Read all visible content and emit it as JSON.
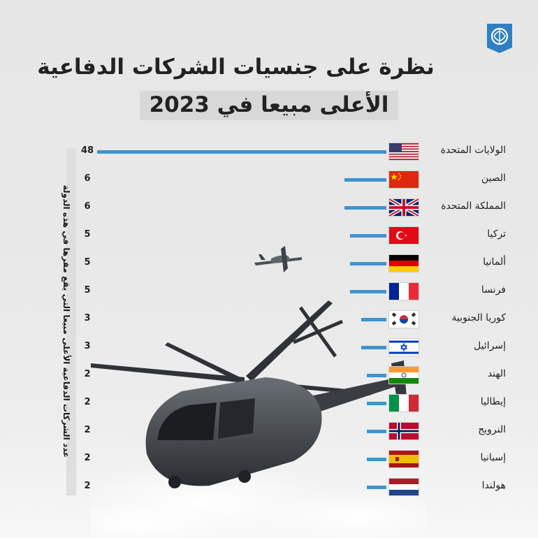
{
  "header": {
    "title_line1": "نظرة على جنسيات الشركات الدفاعية",
    "title_line2": "الأعلى مبيعا في 2023",
    "logo": "aljazeera-logo-icon"
  },
  "colors": {
    "bar": "#3f93cf",
    "title_box": "#d8d8d8"
  },
  "chart_data": {
    "type": "bar",
    "orientation": "horizontal",
    "title": "نظرة على جنسيات الشركات الدفاعية الأعلى مبيعا في 2023",
    "ylabel": "عدد الشركات الدفاعية الأعلى مبيعا التي يقع مقرها في هذه الدولة",
    "categories": [
      "الولايات المتحدة",
      "الصين",
      "المملكة المتحدة",
      "تركيا",
      "ألمانيا",
      "فرنسا",
      "كوريا الجنوبية",
      "إسرائيل",
      "الهند",
      "إيطاليا",
      "النرويج",
      "إسبانيا",
      "هولندا"
    ],
    "values": [
      48,
      6,
      6,
      5,
      5,
      5,
      3,
      3,
      2,
      2,
      2,
      2,
      2
    ],
    "flags": [
      "usa-flag-icon",
      "china-flag-icon",
      "uk-flag-icon",
      "turkey-flag-icon",
      "germany-flag-icon",
      "france-flag-icon",
      "south-korea-flag-icon",
      "israel-flag-icon",
      "india-flag-icon",
      "italy-flag-icon",
      "norway-flag-icon",
      "spain-flag-icon",
      "netherlands-flag-icon"
    ]
  }
}
